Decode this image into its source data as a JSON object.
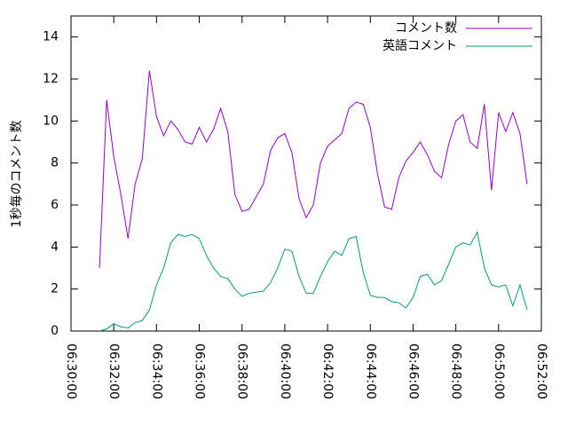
{
  "chart_data": {
    "type": "line",
    "ylabel": "1秒毎のコメント数",
    "x": [
      "06:31:20",
      "06:31:40",
      "06:32:00",
      "06:32:20",
      "06:32:40",
      "06:33:00",
      "06:33:20",
      "06:33:40",
      "06:34:00",
      "06:34:20",
      "06:34:40",
      "06:35:00",
      "06:35:20",
      "06:35:40",
      "06:36:00",
      "06:36:20",
      "06:36:40",
      "06:37:00",
      "06:37:20",
      "06:37:40",
      "06:38:00",
      "06:38:20",
      "06:38:40",
      "06:39:00",
      "06:39:20",
      "06:39:40",
      "06:40:00",
      "06:40:20",
      "06:40:40",
      "06:41:00",
      "06:41:20",
      "06:41:40",
      "06:42:00",
      "06:42:20",
      "06:42:40",
      "06:43:00",
      "06:43:20",
      "06:43:40",
      "06:44:00",
      "06:44:20",
      "06:44:40",
      "06:45:00",
      "06:45:20",
      "06:45:40",
      "06:46:00",
      "06:46:20",
      "06:46:40",
      "06:47:00",
      "06:47:20",
      "06:47:40",
      "06:48:00",
      "06:48:20",
      "06:48:40",
      "06:49:00",
      "06:49:20",
      "06:49:40",
      "06:50:00",
      "06:50:20",
      "06:50:40",
      "06:51:00",
      "06:51:20"
    ],
    "series": [
      {
        "name": "コメント数",
        "color": "#9400d3",
        "values": [
          3.0,
          11.0,
          8.3,
          6.5,
          4.4,
          7.0,
          8.2,
          12.4,
          10.2,
          9.3,
          10.0,
          9.6,
          9.0,
          8.9,
          9.7,
          9.0,
          9.6,
          10.6,
          9.5,
          6.5,
          5.7,
          5.8,
          6.4,
          7.0,
          8.6,
          9.2,
          9.4,
          8.5,
          6.3,
          5.4,
          6.0,
          8.0,
          8.8,
          9.1,
          9.4,
          10.6,
          10.9,
          10.8,
          9.7,
          7.5,
          5.9,
          5.8,
          7.3,
          8.1,
          8.5,
          9.0,
          8.4,
          7.6,
          7.3,
          8.9,
          10.0,
          10.3,
          9.0,
          8.7,
          10.8,
          6.7,
          10.4,
          9.5,
          10.4,
          9.4,
          7.0
        ]
      },
      {
        "name": "英語コメント",
        "color": "#009e73",
        "values": [
          0,
          0.1,
          0.35,
          0.2,
          0.15,
          0.4,
          0.5,
          1.0,
          2.2,
          3.0,
          4.2,
          4.6,
          4.5,
          4.6,
          4.4,
          3.6,
          3.0,
          2.6,
          2.5,
          2.0,
          1.65,
          1.8,
          1.85,
          1.9,
          2.3,
          3.0,
          3.9,
          3.8,
          2.6,
          1.8,
          1.8,
          2.6,
          3.3,
          3.8,
          3.6,
          4.4,
          4.5,
          2.8,
          1.7,
          1.6,
          1.6,
          1.4,
          1.35,
          1.1,
          1.6,
          2.6,
          2.7,
          2.2,
          2.4,
          3.2,
          4.0,
          4.2,
          4.1,
          4.7,
          3.0,
          2.2,
          2.1,
          2.2,
          1.2,
          2.2,
          1.0
        ]
      }
    ],
    "xlim": [
      "06:30:00",
      "06:52:00"
    ],
    "xticks": [
      "06:30:00",
      "06:32:00",
      "06:34:00",
      "06:36:00",
      "06:38:00",
      "06:40:00",
      "06:42:00",
      "06:44:00",
      "06:46:00",
      "06:48:00",
      "06:50:00",
      "06:52:00"
    ],
    "ylim": [
      0,
      15
    ],
    "yticks": [
      0,
      2,
      4,
      6,
      8,
      10,
      12,
      14
    ],
    "legend": "top-right"
  }
}
